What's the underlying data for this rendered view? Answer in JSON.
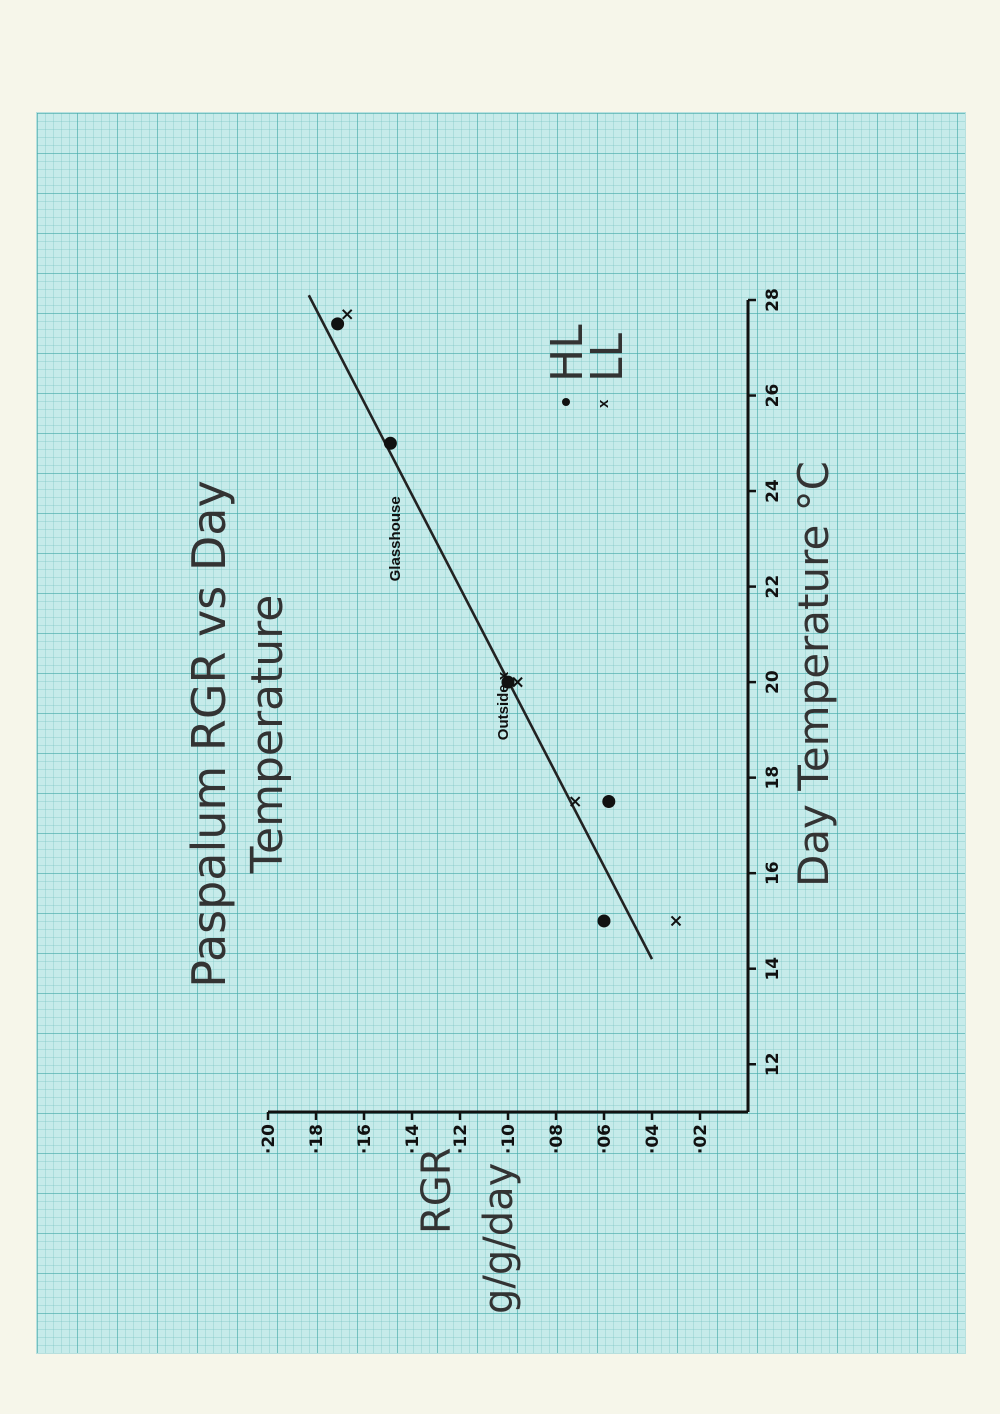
{
  "chart_data": {
    "type": "scatter",
    "title_line1": "Paspalum  RGR  vs  Day",
    "title_line2": "Temperature",
    "xlabel": "Day  Temperature   °C",
    "ylabel_line1": "RGR",
    "ylabel_line2": "g/g/day",
    "xlim": [
      11,
      28
    ],
    "ylim": [
      0,
      0.2
    ],
    "x_ticks": [
      12,
      14,
      16,
      18,
      20,
      22,
      24,
      26,
      28
    ],
    "y_ticks": [
      0.02,
      0.04,
      0.06,
      0.08,
      0.1,
      0.12,
      0.14,
      0.16,
      0.18,
      0.2
    ],
    "y_tick_labels": [
      "·02",
      "·04",
      "·06",
      "·08",
      "·10",
      "·12",
      "·14",
      "·16",
      "·18",
      "·20"
    ],
    "series": [
      {
        "name": "HL",
        "marker": "dot",
        "points": [
          {
            "x": 15.0,
            "y": 0.06
          },
          {
            "x": 17.5,
            "y": 0.058
          },
          {
            "x": 20.0,
            "y": 0.1
          },
          {
            "x": 25.0,
            "y": 0.149
          },
          {
            "x": 27.5,
            "y": 0.171
          }
        ]
      },
      {
        "name": "LL",
        "marker": "x",
        "points": [
          {
            "x": 15.0,
            "y": 0.03
          },
          {
            "x": 17.5,
            "y": 0.072
          },
          {
            "x": 20.0,
            "y": 0.096
          },
          {
            "x": 27.7,
            "y": 0.167
          }
        ]
      }
    ],
    "fit_line": {
      "from": {
        "x": 14.2,
        "y": 0.04
      },
      "to": {
        "x": 28.1,
        "y": 0.183
      }
    },
    "annotations": [
      {
        "text": "Outside x",
        "x": 19.5,
        "y": 0.1
      },
      {
        "text": "Glasshouse",
        "x": 23.0,
        "y": 0.145
      }
    ],
    "legend": {
      "placement": "right",
      "entries": [
        {
          "symbol": "•",
          "label": "HL"
        },
        {
          "symbol": "x",
          "label": "LL"
        }
      ]
    }
  }
}
